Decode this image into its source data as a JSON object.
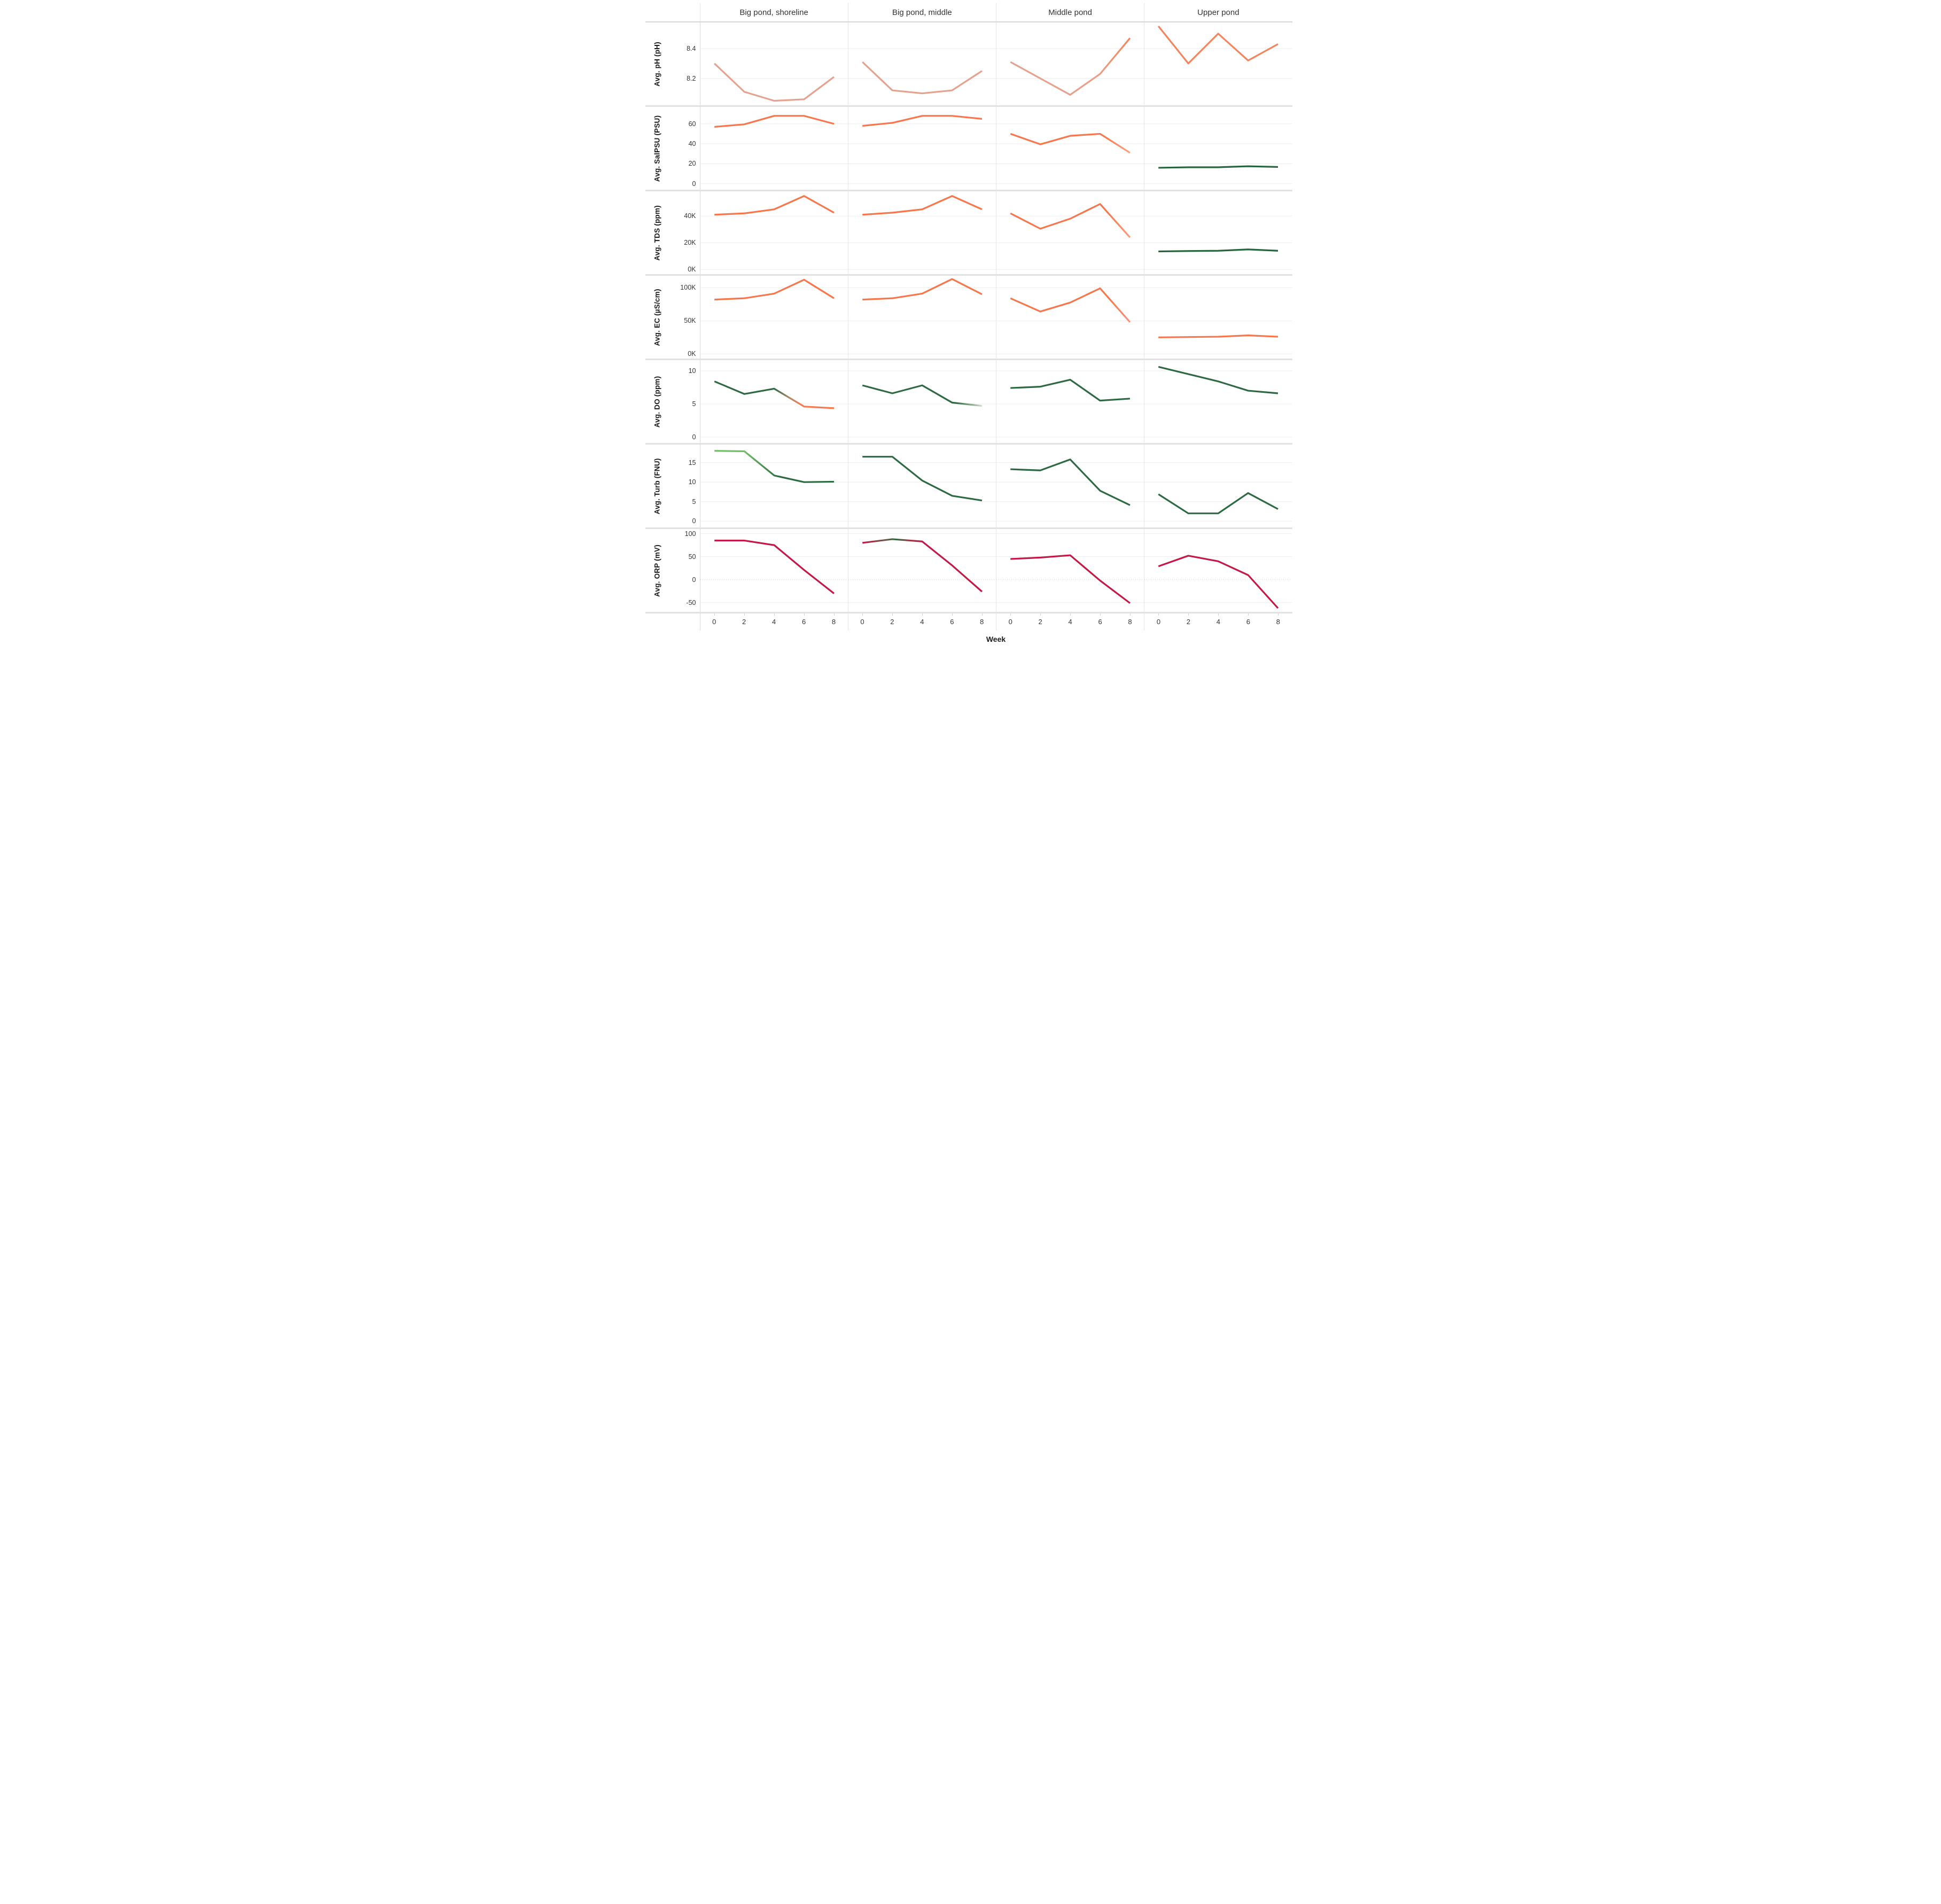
{
  "chart_data": {
    "type": "line",
    "layout": "small-multiples-facet-grid",
    "title": "",
    "xlabel": "Week",
    "x": [
      0,
      2,
      4,
      6,
      8
    ],
    "x_tick_labels": [
      "0",
      "2",
      "4",
      "6",
      "8"
    ],
    "grid": "on",
    "legend": "none",
    "columns": [
      "Big pond, shoreline",
      "Big pond, middle",
      "Middle pond",
      "Upper pond"
    ],
    "accent_colors": {
      "orange": "#f7764c",
      "salmon": "#e5a28e",
      "dark_green": "#2d6a43",
      "light_green": "#6fbe63",
      "crimson": "#c41847"
    },
    "rows": [
      {
        "id": "ph",
        "ylabel": "Avg. pH (pH)",
        "ylim": [
          8.02,
          8.575
        ],
        "ticks": [
          {
            "v": 8.4,
            "label": "8.4"
          },
          {
            "v": 8.2,
            "label": "8.2"
          }
        ],
        "zero_line": false,
        "series": [
          {
            "name": "Big pond, shoreline",
            "values": [
              8.3,
              8.11,
              8.05,
              8.06,
              8.21
            ],
            "stroke": "#e5a28e"
          },
          {
            "name": "Big pond, middle",
            "values": [
              8.31,
              8.12,
              8.1,
              8.12,
              8.25
            ],
            "stroke": "#e5a28e"
          },
          {
            "name": "Middle pond",
            "values": [
              8.31,
              8.2,
              8.09,
              8.23,
              8.47
            ],
            "stops": [
              [
                0,
                "#e3a390"
              ],
              [
                0.72,
                "#e8a089"
              ],
              [
                0.9,
                "#f0906c"
              ],
              [
                1,
                "#f5825a"
              ]
            ]
          },
          {
            "name": "Upper pond",
            "values": [
              8.55,
              8.3,
              8.5,
              8.32,
              8.43
            ],
            "stroke": "#f5835c"
          }
        ]
      },
      {
        "id": "sal",
        "ylabel": "Avg. SalPSU (PSU)",
        "ylim": [
          -6,
          77
        ],
        "ticks": [
          {
            "v": 60,
            "label": "60"
          },
          {
            "v": 40,
            "label": "40"
          },
          {
            "v": 20,
            "label": "20"
          },
          {
            "v": 0,
            "label": "0"
          }
        ],
        "zero_line": false,
        "series": [
          {
            "name": "Big pond, shoreline",
            "values": [
              57,
              59.5,
              68,
              68,
              60
            ],
            "stroke": "#f7764c"
          },
          {
            "name": "Big pond, middle",
            "values": [
              58,
              61,
              68,
              68,
              65
            ],
            "stroke": "#f7764c"
          },
          {
            "name": "Middle pond",
            "values": [
              50,
              39.5,
              48,
              50,
              31
            ],
            "stops": [
              [
                0,
                "#f7764c"
              ],
              [
                0.78,
                "#f7764c"
              ],
              [
                1,
                "#f9a584"
              ]
            ]
          },
          {
            "name": "Upper pond",
            "values": [
              16,
              16.5,
              16.5,
              17.5,
              16.8
            ],
            "stroke": "#27663e"
          }
        ]
      },
      {
        "id": "tds",
        "ylabel": "Avg. TDS (ppm)",
        "ylim": [
          -3.5,
          58.5
        ],
        "ticks": [
          {
            "v": 40,
            "label": "40K"
          },
          {
            "v": 20,
            "label": "20K"
          },
          {
            "v": 0,
            "label": "0K"
          }
        ],
        "zero_line": false,
        "series": [
          {
            "name": "Big pond, shoreline",
            "values": [
              41,
              42,
              45,
              55,
              42.5
            ],
            "stroke": "#f7764c"
          },
          {
            "name": "Big pond, middle",
            "values": [
              41,
              42.5,
              45,
              55,
              45
            ],
            "stroke": "#f7764c"
          },
          {
            "name": "Middle pond",
            "values": [
              42,
              30.5,
              38,
              49,
              24
            ],
            "stops": [
              [
                0,
                "#f7764c"
              ],
              [
                0.8,
                "#f7764c"
              ],
              [
                1,
                "#f99d7c"
              ]
            ]
          },
          {
            "name": "Upper pond",
            "values": [
              13.5,
              13.8,
              14,
              15,
              14
            ],
            "stroke": "#27663e"
          }
        ]
      },
      {
        "id": "ec",
        "ylabel": "Avg. EC (µS/cm)",
        "ylim": [
          -7,
          118
        ],
        "ticks": [
          {
            "v": 100,
            "label": "100K"
          },
          {
            "v": 50,
            "label": "50K"
          },
          {
            "v": 0,
            "label": "0K"
          }
        ],
        "zero_line": false,
        "series": [
          {
            "name": "Big pond, shoreline",
            "values": [
              82,
              84,
              91,
              112,
              84
            ],
            "stroke": "#f7764c"
          },
          {
            "name": "Big pond, middle",
            "values": [
              82,
              84,
              91,
              113,
              90
            ],
            "stroke": "#f7764c"
          },
          {
            "name": "Middle pond",
            "values": [
              84,
              64,
              77.5,
              99,
              48
            ],
            "stops": [
              [
                0,
                "#f7764c"
              ],
              [
                0.82,
                "#f7764c"
              ],
              [
                1,
                "#f9937a"
              ]
            ]
          },
          {
            "name": "Upper pond",
            "values": [
              25,
              25.5,
              26,
              28,
              26
            ],
            "stroke": "#f7764c"
          }
        ]
      },
      {
        "id": "do",
        "ylabel": "Avg. DO (ppm)",
        "ylim": [
          -0.9,
          11.6
        ],
        "ticks": [
          {
            "v": 10,
            "label": "10"
          },
          {
            "v": 5,
            "label": "5"
          },
          {
            "v": 0,
            "label": "0"
          }
        ],
        "zero_line": false,
        "series": [
          {
            "name": "Big pond, shoreline",
            "values": [
              8.4,
              6.5,
              7.3,
              4.6,
              4.35
            ],
            "stops": [
              [
                0,
                "#2d6a43"
              ],
              [
                0.5,
                "#2d6a43"
              ],
              [
                0.63,
                "#b08a66"
              ],
              [
                0.73,
                "#f97a50"
              ],
              [
                1,
                "#f97a50"
              ]
            ]
          },
          {
            "name": "Big pond, middle",
            "values": [
              7.8,
              6.6,
              7.8,
              5.2,
              4.7
            ],
            "stops": [
              [
                0,
                "#2d6a43"
              ],
              [
                0.78,
                "#2d6a43"
              ],
              [
                0.92,
                "#8fae92"
              ],
              [
                1,
                "#d2dcd0"
              ]
            ]
          },
          {
            "name": "Middle pond",
            "values": [
              7.4,
              7.6,
              8.65,
              5.5,
              5.8
            ],
            "stroke": "#2d6a43"
          },
          {
            "name": "Upper pond",
            "values": [
              10.6,
              9.5,
              8.4,
              7.0,
              6.6
            ],
            "stroke": "#2d6a43"
          }
        ]
      },
      {
        "id": "turb",
        "ylabel": "Avg. Turb (FNU)",
        "ylim": [
          -1.6,
          19.6
        ],
        "ticks": [
          {
            "v": 15,
            "label": "15"
          },
          {
            "v": 10,
            "label": "10"
          },
          {
            "v": 5,
            "label": "5"
          },
          {
            "v": 0,
            "label": "0"
          }
        ],
        "zero_line": false,
        "series": [
          {
            "name": "Big pond, shoreline",
            "values": [
              18,
              17.9,
              11.7,
              10,
              10.1
            ],
            "stops": [
              [
                0,
                "#6fbe63"
              ],
              [
                0.25,
                "#6fbe63"
              ],
              [
                0.55,
                "#2d6a43"
              ],
              [
                1,
                "#2d6a43"
              ]
            ]
          },
          {
            "name": "Big pond, middle",
            "values": [
              16.5,
              16.5,
              10.4,
              6.5,
              5.3
            ],
            "stroke": "#2d6a43"
          },
          {
            "name": "Middle pond",
            "values": [
              13.3,
              13.0,
              15.8,
              7.8,
              4.1
            ],
            "stroke": "#2d6a43"
          },
          {
            "name": "Upper pond",
            "values": [
              6.9,
              2.0,
              2.0,
              7.2,
              3.1
            ],
            "stroke": "#2d6a43"
          }
        ]
      },
      {
        "id": "orp",
        "ylabel": "Avg. ORP (mV)",
        "ylim": [
          -70,
          110
        ],
        "ticks": [
          {
            "v": 100,
            "label": "100"
          },
          {
            "v": 50,
            "label": "50"
          },
          {
            "v": 0,
            "label": "0"
          },
          {
            "v": -50,
            "label": "-50"
          }
        ],
        "zero_line": true,
        "series": [
          {
            "name": "Big pond, shoreline",
            "values": [
              85,
              85,
              75,
              21,
              -30
            ],
            "stroke": "#c41847"
          },
          {
            "name": "Big pond, middle",
            "values": [
              80,
              88,
              83,
              31,
              -26
            ],
            "stops": [
              [
                0,
                "#c41847"
              ],
              [
                0.2,
                "#6a5a46"
              ],
              [
                0.28,
                "#2f6a40"
              ],
              [
                0.38,
                "#8f4046"
              ],
              [
                0.5,
                "#c41847"
              ],
              [
                1,
                "#c41847"
              ]
            ]
          },
          {
            "name": "Middle pond",
            "values": [
              45,
              48,
              53,
              -2,
              -51
            ],
            "stroke": "#c41847"
          },
          {
            "name": "Upper pond",
            "values": [
              29,
              52,
              40,
              10,
              -62
            ],
            "stroke": "#c41847"
          }
        ]
      }
    ]
  }
}
